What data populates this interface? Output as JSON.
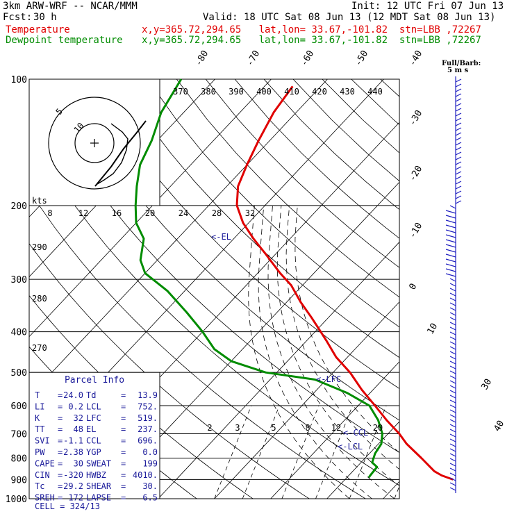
{
  "header": {
    "model": "3km ARW-WRF -- NCAR/MMM",
    "init": "Init: 12 UTC Fri 07 Jun 13",
    "fcst_label": "Fcst:",
    "fcst_value": "30 h",
    "valid": "Valid: 18 UTC Sat 08 Jun 13 (12 MDT Sat 08 Jun 13)",
    "temp_label": "Temperature",
    "temp_loc": "x,y=365.72,294.65   lat,lon= 33.67,-101.82  stn=LBB ,72267",
    "dew_label": "Dewpoint temperature",
    "dew_loc": "x,y=365.72,294.65   lat,lon= 33.67,-101.82  stn=LBB ,72267"
  },
  "colors": {
    "temperature": "#e00000",
    "dewpoint": "#008c00",
    "barbs": "#2020c0",
    "text_blue": "#1a1a9a"
  },
  "chart_data": {
    "type": "line",
    "pressure_ticks": [
      "100",
      "200",
      "300",
      "400",
      "500",
      "600",
      "700",
      "800",
      "900",
      "1000"
    ],
    "pressure_levels": [
      100,
      200,
      300,
      400,
      500,
      600,
      700,
      800,
      900,
      1000
    ],
    "isotherm_labels_top": [
      "-80",
      "-70",
      "-60",
      "-50",
      "-40"
    ],
    "isotherm_labels_right": [
      "-30",
      "-20",
      "-10",
      "0",
      "10"
    ],
    "isotherm_labels_bottom_right": [
      "30",
      "40"
    ],
    "theta_e_labels": [
      "370",
      "380",
      "390",
      "400",
      "410",
      "420",
      "430",
      "440"
    ],
    "theta_labels_left": [
      "290",
      "280",
      "270"
    ],
    "hodo_speed_labels": [
      "8",
      "12",
      "16",
      "20",
      "24",
      "28",
      "32"
    ],
    "hodo_units": "kts",
    "hodo_ring_labels": [
      "5",
      "10"
    ],
    "mixing_ratio_labels": [
      "2",
      "3",
      "5",
      "8",
      "12",
      "20"
    ],
    "temperature": {
      "name": "Temperature",
      "pressure": [
        900,
        880,
        860,
        800,
        740,
        700,
        650,
        600,
        550,
        500,
        460,
        420,
        400,
        370,
        340,
        310,
        290,
        260,
        240,
        220,
        200,
        180,
        160,
        140,
        120,
        104
      ],
      "values_c": [
        29.2,
        26.5,
        24.5,
        20,
        15,
        12,
        7.5,
        3,
        -2,
        -7,
        -12,
        -16.5,
        -19,
        -23,
        -27.5,
        -32,
        -36,
        -42,
        -46.5,
        -51,
        -55,
        -58,
        -60,
        -62,
        -64,
        -65
      ]
    },
    "dewpoint": {
      "name": "Dewpoint temperature",
      "pressure": [
        890,
        880,
        840,
        820,
        780,
        740,
        700,
        650,
        600,
        560,
        520,
        500,
        470,
        440,
        400,
        360,
        320,
        290,
        270,
        240,
        220,
        200,
        180,
        160,
        140,
        120,
        100
      ],
      "values_c": [
        13.9,
        13.8,
        13.6,
        12,
        11,
        10.5,
        9,
        6,
        2,
        -4,
        -12,
        -22,
        -30,
        -35,
        -40,
        -46,
        -53,
        -60,
        -63,
        -66,
        -70,
        -73,
        -76,
        -79,
        -81,
        -84,
        -86
      ]
    },
    "annotations": [
      "<-EL",
      "<-LFC",
      "<-CCL",
      "<-LCL"
    ],
    "wind_barbs_label": "Full/Barb:",
    "wind_barbs_units": "5 m s"
  },
  "parcel_info": {
    "title": "Parcel Info",
    "rows": [
      {
        "k1": "T",
        "v1": "24.0",
        "k2": "Td",
        "v2": "13.9"
      },
      {
        "k1": "LI",
        "v1": "0.2",
        "k2": "LCL",
        "v2": "752."
      },
      {
        "k1": "K",
        "v1": "32",
        "k2": "LFC",
        "v2": "519."
      },
      {
        "k1": "TT",
        "v1": "48",
        "k2": "EL",
        "v2": "237."
      },
      {
        "k1": "SVI",
        "v1": "-1.1",
        "k2": "CCL",
        "v2": "696."
      },
      {
        "k1": "PW",
        "v1": "2.38",
        "k2": "YGP",
        "v2": "0.0"
      },
      {
        "k1": "CAPE",
        "v1": "30",
        "k2": "SWEAT",
        "v2": "199"
      },
      {
        "k1": "CIN",
        "v1": "-320",
        "k2": "HWBZ",
        "v2": "4010."
      },
      {
        "k1": "Tc",
        "v1": "29.2",
        "k2": "SHEAR",
        "v2": "30."
      },
      {
        "k1": "SREH",
        "v1": "172",
        "k2": "LAPSE",
        "v2": "6.5"
      }
    ],
    "cell": "CELL = 324/13"
  }
}
